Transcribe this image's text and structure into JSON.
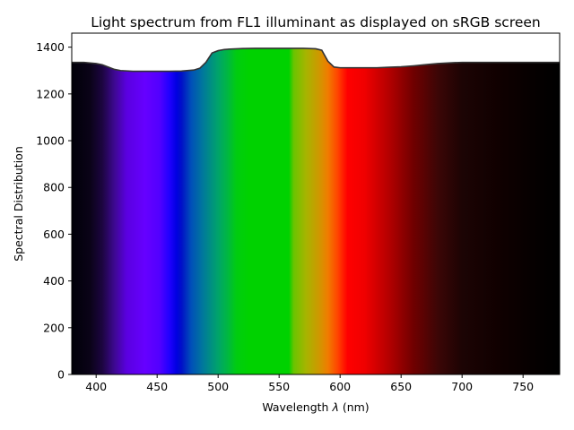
{
  "chart_data": {
    "type": "area",
    "title": "Light spectrum from FL1 illuminant as displayed on sRGB screen",
    "xlabel_main": "Wavelength ",
    "xlabel_symbol": "λ",
    "xlabel_unit": " (nm)",
    "ylabel": "Spectral Distribution",
    "xlim": [
      380,
      780
    ],
    "ylim": [
      0,
      1460
    ],
    "xticks": [
      400,
      450,
      500,
      550,
      600,
      650,
      700,
      750
    ],
    "yticks": [
      0,
      200,
      400,
      600,
      800,
      1000,
      1200,
      1400
    ],
    "x": [
      380,
      390,
      400,
      405,
      410,
      415,
      420,
      430,
      440,
      450,
      460,
      470,
      480,
      485,
      490,
      495,
      500,
      505,
      510,
      520,
      530,
      540,
      550,
      560,
      570,
      580,
      585,
      590,
      595,
      600,
      610,
      620,
      630,
      640,
      650,
      660,
      670,
      680,
      690,
      700,
      710,
      720,
      730,
      740,
      750,
      760,
      770,
      780
    ],
    "values": [
      1335,
      1335,
      1330,
      1325,
      1315,
      1305,
      1300,
      1297,
      1297,
      1297,
      1297,
      1298,
      1302,
      1310,
      1335,
      1375,
      1385,
      1390,
      1392,
      1394,
      1395,
      1395,
      1395,
      1395,
      1395,
      1393,
      1387,
      1340,
      1315,
      1312,
      1312,
      1312,
      1312,
      1314,
      1316,
      1320,
      1325,
      1330,
      1333,
      1335,
      1335,
      1335,
      1335,
      1335,
      1335,
      1335,
      1335,
      1335
    ],
    "spectrum_colors": [
      {
        "nm": 380,
        "color": "#000008"
      },
      {
        "nm": 395,
        "color": "#0a0318"
      },
      {
        "nm": 405,
        "color": "#1c0540"
      },
      {
        "nm": 415,
        "color": "#3d0890"
      },
      {
        "nm": 425,
        "color": "#5a00e0"
      },
      {
        "nm": 440,
        "color": "#6600ff"
      },
      {
        "nm": 452,
        "color": "#5200ff"
      },
      {
        "nm": 460,
        "color": "#2000ff"
      },
      {
        "nm": 466,
        "color": "#0000e0"
      },
      {
        "nm": 470,
        "color": "#0010c8"
      },
      {
        "nm": 478,
        "color": "#0050b8"
      },
      {
        "nm": 488,
        "color": "#007a9a"
      },
      {
        "nm": 500,
        "color": "#00a46a"
      },
      {
        "nm": 508,
        "color": "#00b840"
      },
      {
        "nm": 515,
        "color": "#00cc10"
      },
      {
        "nm": 525,
        "color": "#00d200"
      },
      {
        "nm": 558,
        "color": "#00d200"
      },
      {
        "nm": 562,
        "color": "#6ac400"
      },
      {
        "nm": 572,
        "color": "#a6b400"
      },
      {
        "nm": 582,
        "color": "#cc9a00"
      },
      {
        "nm": 590,
        "color": "#f07c00"
      },
      {
        "nm": 598,
        "color": "#ff4400"
      },
      {
        "nm": 606,
        "color": "#ff0000"
      },
      {
        "nm": 620,
        "color": "#f00000"
      },
      {
        "nm": 640,
        "color": "#b40000"
      },
      {
        "nm": 660,
        "color": "#700000"
      },
      {
        "nm": 680,
        "color": "#3c0606"
      },
      {
        "nm": 700,
        "color": "#1c0404"
      },
      {
        "nm": 730,
        "color": "#100000"
      },
      {
        "nm": 760,
        "color": "#050000"
      },
      {
        "nm": 780,
        "color": "#000000"
      }
    ],
    "line_color": "#333333",
    "grid": false,
    "legend": "none"
  }
}
